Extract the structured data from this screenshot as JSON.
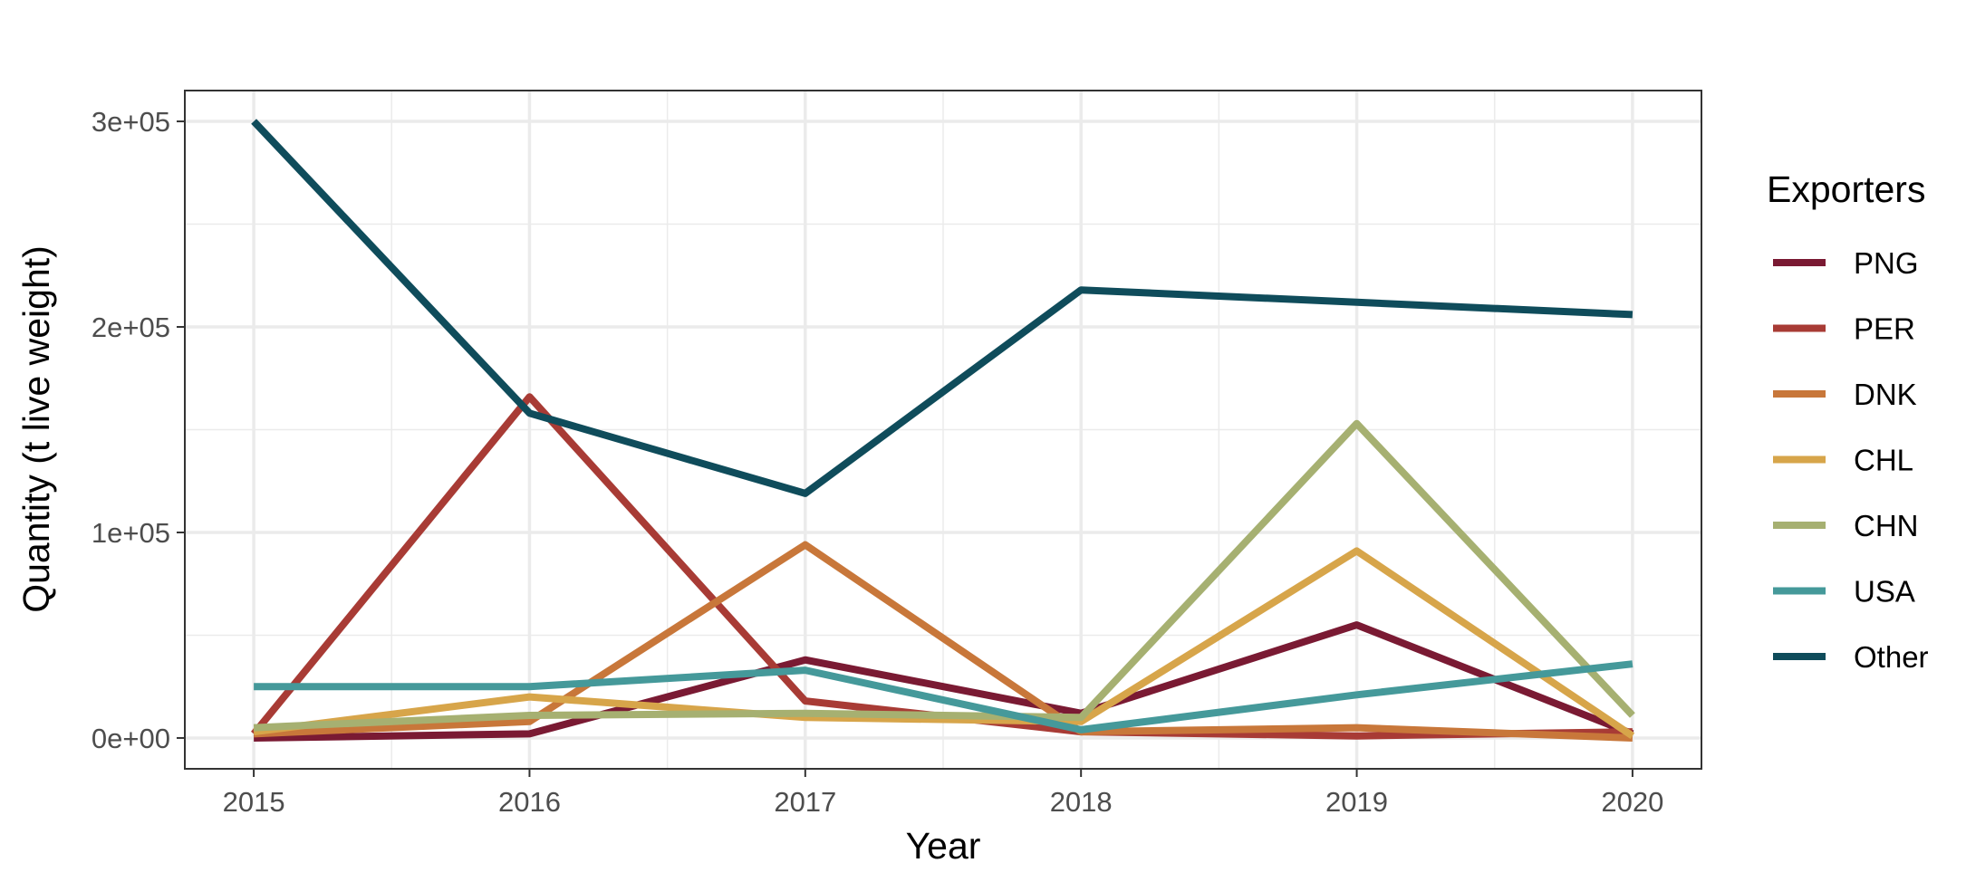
{
  "chart_data": {
    "type": "line",
    "x": [
      2015,
      2016,
      2017,
      2018,
      2019,
      2020
    ],
    "xlabel": "Year",
    "ylabel": "Quantity (t live weight)",
    "ylim": [
      -15000,
      315000
    ],
    "yticks": [
      0,
      100000,
      200000,
      300000
    ],
    "ytick_labels": [
      "0e+00",
      "1e+05",
      "2e+05",
      "3e+05"
    ],
    "xticks": [
      2015,
      2016,
      2017,
      2018,
      2019,
      2020
    ],
    "xtick_labels": [
      "2015",
      "2016",
      "2017",
      "2018",
      "2019",
      "2020"
    ],
    "grid": true,
    "legend": {
      "title": "Exporters",
      "position": "right"
    },
    "series": [
      {
        "name": "PNG",
        "color": "#7a1a33",
        "values": [
          0,
          2000,
          38000,
          12000,
          55000,
          2000
        ]
      },
      {
        "name": "PER",
        "color": "#a83b35",
        "values": [
          2000,
          166000,
          18000,
          3000,
          1000,
          3000
        ]
      },
      {
        "name": "DNK",
        "color": "#c8773a",
        "values": [
          2000,
          8000,
          94000,
          3000,
          5000,
          0
        ]
      },
      {
        "name": "CHL",
        "color": "#d7a54a",
        "values": [
          3000,
          20000,
          10000,
          8000,
          91000,
          1000
        ]
      },
      {
        "name": "CHN",
        "color": "#a6b071",
        "values": [
          5000,
          11000,
          12000,
          10000,
          153000,
          11000
        ]
      },
      {
        "name": "USA",
        "color": "#45999a",
        "values": [
          25000,
          25000,
          33000,
          4000,
          21000,
          36000
        ]
      },
      {
        "name": "Other",
        "color": "#0f4c5b",
        "values": [
          300000,
          158000,
          119000,
          218000,
          212000,
          206000
        ]
      }
    ]
  }
}
